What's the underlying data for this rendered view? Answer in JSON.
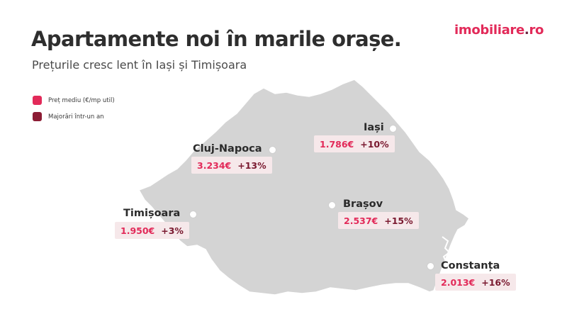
{
  "title": "Apartamente noi în marile orașe.",
  "subtitle": "Prețurile cresc lent în Iași și Timișoara",
  "logo": {
    "part1": "imobiliare",
    "dot": ".",
    "part2": "ro"
  },
  "legend": [
    {
      "label": "Preț mediu (€/mp util)",
      "color": "#e22a59"
    },
    {
      "label": "Majorări într-un an",
      "color": "#8c1c34"
    }
  ],
  "colors": {
    "accent": "#e22a59",
    "dark_accent": "#7a1a30",
    "map_fill": "#d4d4d4",
    "tag_bg": "#f6e8ea"
  },
  "cities": {
    "cluj": {
      "name": "Cluj-Napoca",
      "price": "3.234€",
      "change": "+13%"
    },
    "iasi": {
      "name": "Iași",
      "price": "1.786€",
      "change": "+10%"
    },
    "timisoara": {
      "name": "Timișoara",
      "price": "1.950€",
      "change": "+3%"
    },
    "brasov": {
      "name": "Brașov",
      "price": "2.537€",
      "change": "+15%"
    },
    "constanta": {
      "name": "Constanța",
      "price": "2.013€",
      "change": "+16%"
    }
  }
}
